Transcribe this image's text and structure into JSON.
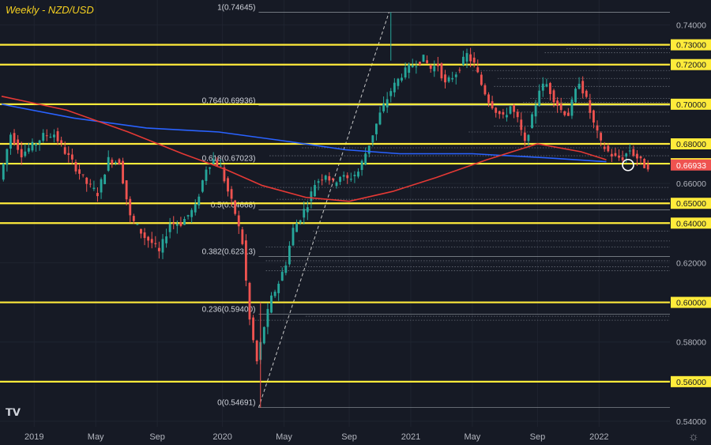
{
  "chart_data": {
    "type": "candlestick",
    "title": "Weekly - NZD/USD",
    "pair": "NZD/USD",
    "timeframe": "Weekly",
    "ylim": [
      0.5372,
      0.7526
    ],
    "x_range_weeks": [
      0,
      185
    ],
    "y_ticks": [
      "0.74000",
      "0.73000",
      "0.72000",
      "0.70000",
      "0.68000",
      "0.67000",
      "0.66000",
      "0.65000",
      "0.64000",
      "0.62000",
      "0.60000",
      "0.58000",
      "0.56000",
      "0.54000"
    ],
    "x_ticks": [
      {
        "label": "2019",
        "week": 9
      },
      {
        "label": "May",
        "week": 26
      },
      {
        "label": "Sep",
        "week": 43
      },
      {
        "label": "2020",
        "week": 61
      },
      {
        "label": "May",
        "week": 78
      },
      {
        "label": "Sep",
        "week": 96
      },
      {
        "label": "2021",
        "week": 113
      },
      {
        "label": "May",
        "week": 130
      },
      {
        "label": "Sep",
        "week": 148
      },
      {
        "label": "2022",
        "week": 165
      }
    ],
    "horizontal_levels": [
      {
        "price": 0.73,
        "label": "0.73000"
      },
      {
        "price": 0.72,
        "label": "0.72000"
      },
      {
        "price": 0.7,
        "label": "0.70000"
      },
      {
        "price": 0.68,
        "label": "0.68000"
      },
      {
        "price": 0.67,
        "label": "0.67000"
      },
      {
        "price": 0.65,
        "label": "0.65000"
      },
      {
        "price": 0.64,
        "label": "0.64000"
      },
      {
        "price": 0.6,
        "label": "0.60000"
      },
      {
        "price": 0.56,
        "label": "0.56000"
      }
    ],
    "fib_levels": [
      {
        "ratio": "1",
        "price": 0.74645,
        "label": "1(0.74645)"
      },
      {
        "ratio": "0.764",
        "price": 0.69936,
        "label": "0.764(0.69936)"
      },
      {
        "ratio": "0.618",
        "price": 0.67023,
        "label": "0.618(0.67023)"
      },
      {
        "ratio": "0.5",
        "price": 0.64668,
        "label": "0.5(0.64668)"
      },
      {
        "ratio": "0.382",
        "price": 0.62313,
        "label": "0.382(0.62313)"
      },
      {
        "ratio": "0.236",
        "price": 0.594,
        "label": "0.236(0.59400)"
      },
      {
        "ratio": "0",
        "price": 0.54691,
        "label": "0(0.54691)"
      }
    ],
    "fib_anchor": {
      "low_week": 71,
      "low_price": 0.54691,
      "high_week": 107,
      "high_price": 0.74645
    },
    "current_price": {
      "price": 0.66933,
      "label": "0.66933",
      "week": 165
    },
    "moving_averages": [
      {
        "name": "blue MA",
        "color": "#2962ff",
        "points": [
          [
            0,
            0.7
          ],
          [
            20,
            0.693
          ],
          [
            40,
            0.688
          ],
          [
            60,
            0.686
          ],
          [
            80,
            0.681
          ],
          [
            95,
            0.677
          ],
          [
            110,
            0.675
          ],
          [
            130,
            0.675
          ],
          [
            150,
            0.673
          ],
          [
            167,
            0.671
          ]
        ]
      },
      {
        "name": "red MA",
        "color": "#e53935",
        "points": [
          [
            0,
            0.704
          ],
          [
            18,
            0.697
          ],
          [
            35,
            0.686
          ],
          [
            50,
            0.675
          ],
          [
            62,
            0.667
          ],
          [
            72,
            0.659
          ],
          [
            84,
            0.653
          ],
          [
            96,
            0.651
          ],
          [
            108,
            0.656
          ],
          [
            120,
            0.663
          ],
          [
            134,
            0.672
          ],
          [
            148,
            0.68
          ],
          [
            160,
            0.676
          ],
          [
            167,
            0.672
          ]
        ]
      }
    ],
    "price_path": [
      [
        0,
        0.662
      ],
      [
        3,
        0.685
      ],
      [
        6,
        0.675
      ],
      [
        9,
        0.679
      ],
      [
        12,
        0.684
      ],
      [
        15,
        0.685
      ],
      [
        18,
        0.676
      ],
      [
        21,
        0.668
      ],
      [
        24,
        0.66
      ],
      [
        27,
        0.655
      ],
      [
        30,
        0.672
      ],
      [
        33,
        0.671
      ],
      [
        36,
        0.643
      ],
      [
        38,
        0.638
      ],
      [
        40,
        0.633
      ],
      [
        42,
        0.63
      ],
      [
        44,
        0.625
      ],
      [
        47,
        0.64
      ],
      [
        50,
        0.64
      ],
      [
        54,
        0.648
      ],
      [
        57,
        0.668
      ],
      [
        59,
        0.672
      ],
      [
        61,
        0.668
      ],
      [
        63,
        0.656
      ],
      [
        65,
        0.645
      ],
      [
        67,
        0.63
      ],
      [
        69,
        0.591
      ],
      [
        71,
        0.57
      ],
      [
        73,
        0.588
      ],
      [
        75,
        0.602
      ],
      [
        77,
        0.61
      ],
      [
        79,
        0.62
      ],
      [
        81,
        0.637
      ],
      [
        83,
        0.643
      ],
      [
        85,
        0.65
      ],
      [
        87,
        0.66
      ],
      [
        90,
        0.665
      ],
      [
        92,
        0.66
      ],
      [
        94,
        0.664
      ],
      [
        96,
        0.662
      ],
      [
        99,
        0.666
      ],
      [
        102,
        0.68
      ],
      [
        105,
        0.695
      ],
      [
        108,
        0.707
      ],
      [
        111,
        0.715
      ],
      [
        114,
        0.72
      ],
      [
        117,
        0.723
      ],
      [
        119,
        0.718
      ],
      [
        121,
        0.72
      ],
      [
        123,
        0.71
      ],
      [
        126,
        0.716
      ],
      [
        129,
        0.725
      ],
      [
        131,
        0.72
      ],
      [
        133,
        0.71
      ],
      [
        135,
        0.702
      ],
      [
        137,
        0.697
      ],
      [
        139,
        0.693
      ],
      [
        141,
        0.699
      ],
      [
        143,
        0.692
      ],
      [
        145,
        0.68
      ],
      [
        147,
        0.693
      ],
      [
        149,
        0.708
      ],
      [
        151,
        0.71
      ],
      [
        153,
        0.703
      ],
      [
        155,
        0.697
      ],
      [
        157,
        0.695
      ],
      [
        160,
        0.712
      ],
      [
        162,
        0.702
      ],
      [
        164,
        0.69
      ],
      [
        166,
        0.68
      ],
      [
        168,
        0.676
      ],
      [
        170,
        0.673
      ],
      [
        172,
        0.673
      ],
      [
        174,
        0.677
      ],
      [
        176,
        0.673
      ],
      [
        178,
        0.669
      ]
    ]
  }
}
